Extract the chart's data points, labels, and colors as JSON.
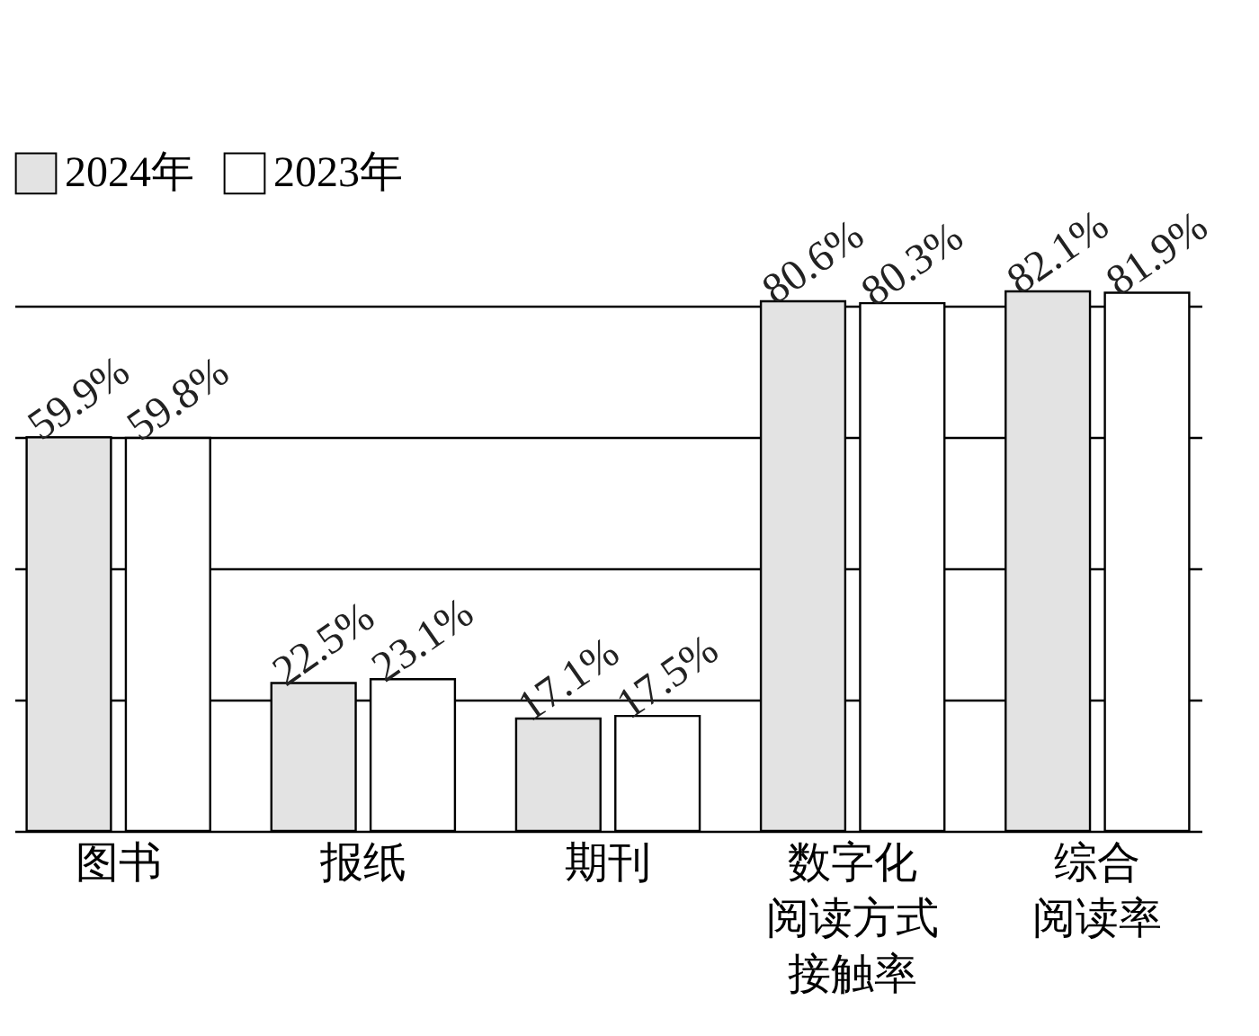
{
  "chart_data": {
    "type": "bar",
    "categories": [
      "图书",
      "报纸",
      "期刊",
      "数字化阅读方式接触率",
      "综合阅读率"
    ],
    "series": [
      {
        "name": "2024年",
        "color": "#e3e3e3",
        "values": [
          59.9,
          22.5,
          17.1,
          80.6,
          82.1
        ],
        "value_labels": [
          "59.9%",
          "22.5%",
          "17.1%",
          "80.6%",
          "82.1%"
        ]
      },
      {
        "name": "2023年",
        "color": "#ffffff",
        "values": [
          59.8,
          23.1,
          17.5,
          80.3,
          81.9
        ],
        "value_labels": [
          "59.8%",
          "23.1%",
          "17.5%",
          "80.3%",
          "81.9%"
        ]
      }
    ],
    "yticks": [
      {
        "value": 0,
        "label": null
      },
      {
        "value": 20,
        "label": null
      },
      {
        "value": 40,
        "label": null
      },
      {
        "value": 60,
        "label": null
      },
      {
        "value": 80,
        "label": null
      }
    ],
    "grid": "y",
    "legend": "top left",
    "tick_labels": "x"
  }
}
